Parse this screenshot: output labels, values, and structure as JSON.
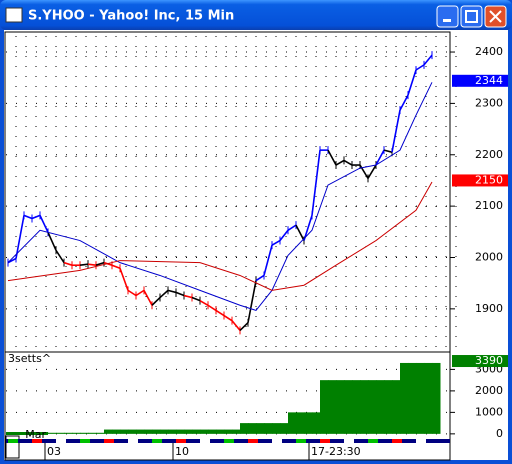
{
  "window": {
    "title": "S.YHOO - Yahoo! Inc, 15 Min"
  },
  "chart_data": [
    {
      "type": "line",
      "ylim": [
        1816,
        2439
      ],
      "yticks": [
        1900,
        2000,
        2100,
        2200,
        2300,
        2400
      ],
      "grid": true,
      "series": [
        {
          "values": [
            1990,
            1998,
            2082,
            2076,
            2082,
            2049,
            2014,
            1990,
            1985,
            1985,
            1987,
            1985,
            1990,
            1985,
            1979,
            1936,
            1926,
            1936,
            1907,
            1922,
            1936,
            1932,
            1926,
            1922,
            1916,
            1907,
            1897,
            1887,
            1877,
            1858,
            1873,
            1955,
            1965,
            2024,
            2033,
            2053,
            2063,
            2033,
            2082,
            2209,
            2209,
            2180,
            2189,
            2180,
            2180,
            2154,
            2180,
            2209,
            2205,
            2287,
            2316,
            2365,
            2375,
            2394
          ],
          "colors": [
            "#0000ff",
            "#0000ff",
            "#0000ff",
            "#0000ff",
            "#0000ff",
            "#0000ff",
            "#000000",
            "#000000",
            "#ff0000",
            "#ff0000",
            "#000000",
            "#ff0000",
            "#000000",
            "#ff0000",
            "#ff0000",
            "#ff0000",
            "#ff0000",
            "#ff0000",
            "#ff0000",
            "#000000",
            "#000000",
            "#000000",
            "#000000",
            "#ff0000",
            "#000000",
            "#ff0000",
            "#ff0000",
            "#ff0000",
            "#ff0000",
            "#ff0000",
            "#000000",
            "#000000",
            "#0000ff",
            "#0000ff",
            "#0000ff",
            "#0000ff",
            "#0000ff",
            "#000000",
            "#0000ff",
            "#0000ff",
            "#0000ff",
            "#000000",
            "#000000",
            "#000000",
            "#000000",
            "#000000",
            "#000000",
            "#0000ff",
            "#000000",
            "#0000ff",
            "#0000ff",
            "#0000ff",
            "#0000ff",
            "#0000ff"
          ]
        },
        {
          "color": "#0000cc",
          "x": [
            0,
            4,
            9,
            14,
            19,
            24,
            29,
            31,
            33,
            35,
            38,
            40,
            44,
            46,
            49,
            51,
            53
          ],
          "values": [
            1990,
            2053,
            2033,
            1990,
            1965,
            1936,
            1907,
            1897,
            1936,
            2004,
            2053,
            2141,
            2174,
            2180,
            2209,
            2277,
            2341
          ]
        },
        {
          "color": "#cc0000",
          "x": [
            0,
            9,
            14,
            24,
            29,
            33,
            37,
            41,
            46,
            51,
            53
          ],
          "values": [
            1955,
            1975,
            1994,
            1990,
            1965,
            1936,
            1946,
            1985,
            2033,
            2092,
            2147
          ]
        }
      ],
      "markers": [
        {
          "value": 2344,
          "label": "2344",
          "color": "#0000ff"
        },
        {
          "value": 2150,
          "label": "2150",
          "color": "#ff0000"
        }
      ]
    },
    {
      "type": "area",
      "title": "3setts^",
      "ylim": [
        -286,
        3810
      ],
      "yticks": [
        0,
        1000,
        2000,
        3000
      ],
      "grid": true,
      "color": "#008000",
      "values": [
        50,
        50,
        50,
        50,
        50,
        50,
        50,
        50,
        50,
        50,
        50,
        50,
        200,
        200,
        200,
        200,
        200,
        200,
        200,
        200,
        200,
        200,
        200,
        200,
        200,
        200,
        200,
        200,
        200,
        500,
        500,
        500,
        500,
        500,
        500,
        1000,
        1000,
        1000,
        1000,
        2500,
        2500,
        2500,
        2500,
        2500,
        2500,
        2500,
        2500,
        2500,
        2500,
        3300,
        3300,
        3300,
        3300,
        3300
      ],
      "markers": [
        {
          "value": 3390,
          "label": "3390",
          "color": "#008000"
        }
      ]
    }
  ],
  "x_axis": {
    "month": {
      "index": 5,
      "label": "Mar"
    },
    "labels": [
      {
        "index": 5,
        "label": "03"
      },
      {
        "index": 21,
        "label": "10"
      },
      {
        "index": 38,
        "label": "17-23:30"
      }
    ]
  }
}
